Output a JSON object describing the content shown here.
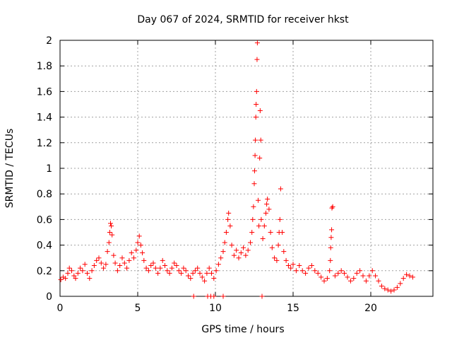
{
  "chart_data": {
    "type": "scatter",
    "title": "Day 067 of 2024, SRMTID for receiver hkst",
    "xlabel": "GPS time / hours",
    "ylabel": "SRMTID / TECUs",
    "xlim": [
      0,
      24
    ],
    "ylim": [
      0,
      2
    ],
    "xticks": [
      0,
      5,
      10,
      15,
      20
    ],
    "xtick_labels": [
      "0",
      "5",
      "10",
      "15",
      "20"
    ],
    "yticks": [
      0,
      0.2,
      0.4,
      0.6,
      0.8,
      1,
      1.2,
      1.4,
      1.6,
      1.8,
      2
    ],
    "ytick_labels": [
      "0",
      "0.2",
      "0.4",
      "0.6",
      "0.8",
      "1",
      "1.2",
      "1.4",
      "1.6",
      "1.8",
      "2"
    ],
    "grid": true,
    "marker": "+",
    "color": "#ff0000",
    "series": [
      {
        "name": "SRMTID",
        "points": [
          [
            0.05,
            0.13
          ],
          [
            0.2,
            0.15
          ],
          [
            0.35,
            0.14
          ],
          [
            0.5,
            0.18
          ],
          [
            0.6,
            0.22
          ],
          [
            0.75,
            0.2
          ],
          [
            0.9,
            0.16
          ],
          [
            1.0,
            0.14
          ],
          [
            1.15,
            0.18
          ],
          [
            1.3,
            0.22
          ],
          [
            1.45,
            0.2
          ],
          [
            1.6,
            0.25
          ],
          [
            1.75,
            0.18
          ],
          [
            1.9,
            0.14
          ],
          [
            2.05,
            0.2
          ],
          [
            2.2,
            0.24
          ],
          [
            2.35,
            0.28
          ],
          [
            2.5,
            0.3
          ],
          [
            2.65,
            0.26
          ],
          [
            2.8,
            0.22
          ],
          [
            2.95,
            0.25
          ],
          [
            3.05,
            0.35
          ],
          [
            3.15,
            0.42
          ],
          [
            3.2,
            0.5
          ],
          [
            3.25,
            0.57
          ],
          [
            3.3,
            0.55
          ],
          [
            3.35,
            0.48
          ],
          [
            3.45,
            0.32
          ],
          [
            3.55,
            0.26
          ],
          [
            3.7,
            0.2
          ],
          [
            3.85,
            0.24
          ],
          [
            4.0,
            0.3
          ],
          [
            4.15,
            0.26
          ],
          [
            4.3,
            0.22
          ],
          [
            4.45,
            0.28
          ],
          [
            4.6,
            0.34
          ],
          [
            4.75,
            0.3
          ],
          [
            4.9,
            0.36
          ],
          [
            5.0,
            0.42
          ],
          [
            5.1,
            0.47
          ],
          [
            5.2,
            0.4
          ],
          [
            5.3,
            0.34
          ],
          [
            5.4,
            0.28
          ],
          [
            5.55,
            0.22
          ],
          [
            5.7,
            0.2
          ],
          [
            5.85,
            0.24
          ],
          [
            6.0,
            0.26
          ],
          [
            6.15,
            0.22
          ],
          [
            6.3,
            0.18
          ],
          [
            6.45,
            0.22
          ],
          [
            6.6,
            0.28
          ],
          [
            6.75,
            0.24
          ],
          [
            6.9,
            0.2
          ],
          [
            7.05,
            0.18
          ],
          [
            7.2,
            0.22
          ],
          [
            7.35,
            0.26
          ],
          [
            7.5,
            0.24
          ],
          [
            7.65,
            0.2
          ],
          [
            7.8,
            0.18
          ],
          [
            7.95,
            0.22
          ],
          [
            8.1,
            0.2
          ],
          [
            8.25,
            0.16
          ],
          [
            8.4,
            0.14
          ],
          [
            8.55,
            0.18
          ],
          [
            8.7,
            0.2
          ],
          [
            8.85,
            0.22
          ],
          [
            9.0,
            0.18
          ],
          [
            9.15,
            0.15
          ],
          [
            9.3,
            0.12
          ],
          [
            9.45,
            0.18
          ],
          [
            9.6,
            0.22
          ],
          [
            9.75,
            0.18
          ],
          [
            9.9,
            0.14
          ],
          [
            10.05,
            0.2
          ],
          [
            10.2,
            0.25
          ],
          [
            10.35,
            0.3
          ],
          [
            10.5,
            0.35
          ],
          [
            10.6,
            0.42
          ],
          [
            10.7,
            0.5
          ],
          [
            10.8,
            0.6
          ],
          [
            10.85,
            0.65
          ],
          [
            10.95,
            0.55
          ],
          [
            11.05,
            0.4
          ],
          [
            11.2,
            0.32
          ],
          [
            11.35,
            0.36
          ],
          [
            11.5,
            0.3
          ],
          [
            11.65,
            0.34
          ],
          [
            11.8,
            0.38
          ],
          [
            11.95,
            0.32
          ],
          [
            12.1,
            0.36
          ],
          [
            12.25,
            0.42
          ],
          [
            12.35,
            0.5
          ],
          [
            12.4,
            0.6
          ],
          [
            12.45,
            0.7
          ],
          [
            12.5,
            0.88
          ],
          [
            12.52,
            0.98
          ],
          [
            12.55,
            1.1
          ],
          [
            12.57,
            1.22
          ],
          [
            12.6,
            1.4
          ],
          [
            12.62,
            1.5
          ],
          [
            12.65,
            1.6
          ],
          [
            12.68,
            1.85
          ],
          [
            12.7,
            1.98
          ],
          [
            12.75,
            0.75
          ],
          [
            12.8,
            0.55
          ],
          [
            12.85,
            1.08
          ],
          [
            12.88,
            1.45
          ],
          [
            12.92,
            1.22
          ],
          [
            12.95,
            0.6
          ],
          [
            13.05,
            0.45
          ],
          [
            13.15,
            0.55
          ],
          [
            13.25,
            0.65
          ],
          [
            13.3,
            0.72
          ],
          [
            13.35,
            0.76
          ],
          [
            13.45,
            0.68
          ],
          [
            13.55,
            0.5
          ],
          [
            13.65,
            0.38
          ],
          [
            13.8,
            0.3
          ],
          [
            13.95,
            0.28
          ],
          [
            14.05,
            0.4
          ],
          [
            14.1,
            0.5
          ],
          [
            14.15,
            0.6
          ],
          [
            14.2,
            0.84
          ],
          [
            14.3,
            0.5
          ],
          [
            14.4,
            0.35
          ],
          [
            14.55,
            0.28
          ],
          [
            14.7,
            0.24
          ],
          [
            14.85,
            0.22
          ],
          [
            15.0,
            0.25
          ],
          [
            15.2,
            0.2
          ],
          [
            15.4,
            0.24
          ],
          [
            15.6,
            0.2
          ],
          [
            15.8,
            0.18
          ],
          [
            16.0,
            0.22
          ],
          [
            16.2,
            0.24
          ],
          [
            16.4,
            0.2
          ],
          [
            16.6,
            0.18
          ],
          [
            16.8,
            0.15
          ],
          [
            17.0,
            0.12
          ],
          [
            17.2,
            0.14
          ],
          [
            17.35,
            0.2
          ],
          [
            17.4,
            0.28
          ],
          [
            17.42,
            0.38
          ],
          [
            17.45,
            0.46
          ],
          [
            17.48,
            0.52
          ],
          [
            17.5,
            0.69
          ],
          [
            17.55,
            0.7
          ],
          [
            17.7,
            0.16
          ],
          [
            17.9,
            0.18
          ],
          [
            18.1,
            0.2
          ],
          [
            18.3,
            0.18
          ],
          [
            18.5,
            0.15
          ],
          [
            18.7,
            0.12
          ],
          [
            18.9,
            0.14
          ],
          [
            19.1,
            0.18
          ],
          [
            19.3,
            0.2
          ],
          [
            19.5,
            0.16
          ],
          [
            19.7,
            0.12
          ],
          [
            19.9,
            0.16
          ],
          [
            20.1,
            0.2
          ],
          [
            20.3,
            0.16
          ],
          [
            20.5,
            0.12
          ],
          [
            20.7,
            0.08
          ],
          [
            20.9,
            0.06
          ],
          [
            21.1,
            0.05
          ],
          [
            21.3,
            0.04
          ],
          [
            21.5,
            0.05
          ],
          [
            21.7,
            0.07
          ],
          [
            21.9,
            0.1
          ],
          [
            22.1,
            0.14
          ],
          [
            22.3,
            0.17
          ],
          [
            22.5,
            0.16
          ],
          [
            22.7,
            0.15
          ],
          [
            8.6,
            0.0
          ],
          [
            9.5,
            0.0
          ],
          [
            9.7,
            0.0
          ],
          [
            9.9,
            0.0
          ],
          [
            10.5,
            0.0
          ],
          [
            13.0,
            0.0
          ]
        ]
      }
    ]
  }
}
